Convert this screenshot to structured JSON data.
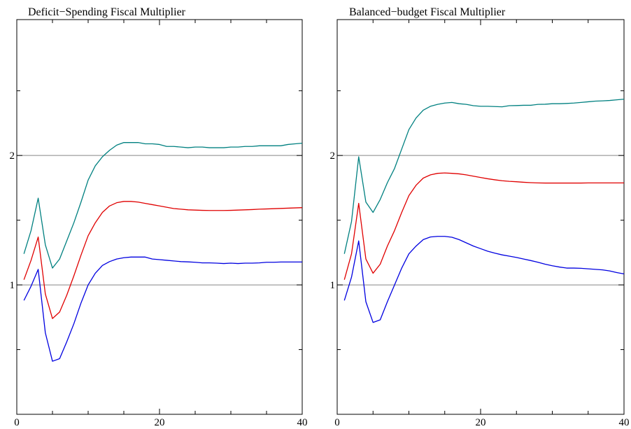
{
  "chart_data": [
    {
      "type": "line",
      "title": "Deficit−Spending Fiscal Multiplier",
      "xlim": [
        0,
        40
      ],
      "ylim": [
        0,
        3.05
      ],
      "x_ticks": [
        0,
        20,
        40
      ],
      "x_tick_labels": [
        "0",
        "20",
        "40"
      ],
      "y_ticks": [
        1,
        2
      ],
      "y_tick_labels": [
        "1",
        "2"
      ],
      "y_minor_ticks": [
        0.5,
        1.5,
        2.5
      ],
      "reference_lines": [
        1,
        2
      ],
      "series": [
        {
          "color": "#008080",
          "x": [
            1,
            2,
            3,
            4,
            5,
            6,
            7,
            8,
            9,
            10,
            11,
            12,
            13,
            14,
            15,
            16,
            17,
            18,
            19,
            20,
            21,
            22,
            23,
            24,
            25,
            26,
            27,
            28,
            29,
            30,
            31,
            32,
            33,
            34,
            35,
            36,
            37,
            38,
            39,
            40
          ],
          "values": [
            1.24,
            1.42,
            1.67,
            1.31,
            1.13,
            1.2,
            1.34,
            1.48,
            1.64,
            1.81,
            1.92,
            1.99,
            2.04,
            2.08,
            2.1,
            2.1,
            2.1,
            2.09,
            2.09,
            2.085,
            2.07,
            2.07,
            2.065,
            2.06,
            2.065,
            2.065,
            2.06,
            2.06,
            2.06,
            2.065,
            2.065,
            2.07,
            2.07,
            2.075,
            2.075,
            2.075,
            2.075,
            2.085,
            2.09,
            2.095
          ]
        },
        {
          "color": "#e00000",
          "x": [
            1,
            2,
            3,
            4,
            5,
            6,
            7,
            8,
            9,
            10,
            11,
            12,
            13,
            14,
            15,
            16,
            17,
            18,
            19,
            20,
            21,
            22,
            23,
            24,
            25,
            26,
            27,
            28,
            29,
            30,
            31,
            32,
            33,
            34,
            35,
            36,
            37,
            38,
            39,
            40
          ],
          "values": [
            1.04,
            1.19,
            1.37,
            0.93,
            0.74,
            0.79,
            0.92,
            1.07,
            1.23,
            1.38,
            1.48,
            1.56,
            1.61,
            1.635,
            1.645,
            1.645,
            1.64,
            1.63,
            1.62,
            1.61,
            1.6,
            1.59,
            1.585,
            1.58,
            1.578,
            1.576,
            1.575,
            1.575,
            1.575,
            1.576,
            1.578,
            1.58,
            1.582,
            1.585,
            1.587,
            1.589,
            1.591,
            1.593,
            1.595,
            1.597
          ]
        },
        {
          "color": "#0000e0",
          "x": [
            1,
            2,
            3,
            4,
            5,
            6,
            7,
            8,
            9,
            10,
            11,
            12,
            13,
            14,
            15,
            16,
            17,
            18,
            19,
            20,
            21,
            22,
            23,
            24,
            25,
            26,
            27,
            28,
            29,
            30,
            31,
            32,
            33,
            34,
            35,
            36,
            37,
            38,
            39,
            40
          ],
          "values": [
            0.88,
            0.99,
            1.12,
            0.63,
            0.41,
            0.43,
            0.56,
            0.7,
            0.86,
            1.0,
            1.09,
            1.15,
            1.18,
            1.2,
            1.21,
            1.215,
            1.215,
            1.215,
            1.2,
            1.195,
            1.19,
            1.185,
            1.18,
            1.178,
            1.175,
            1.17,
            1.17,
            1.168,
            1.165,
            1.168,
            1.165,
            1.168,
            1.168,
            1.17,
            1.175,
            1.175,
            1.177,
            1.177,
            1.177,
            1.177
          ]
        }
      ]
    },
    {
      "type": "line",
      "title": "Balanced−budget Fiscal Multiplier",
      "xlim": [
        0,
        40
      ],
      "ylim": [
        0,
        3.05
      ],
      "x_ticks": [
        0,
        20,
        40
      ],
      "x_tick_labels": [
        "0",
        "20",
        "40"
      ],
      "y_ticks": [
        1,
        2
      ],
      "y_tick_labels": [
        "1",
        "2"
      ],
      "y_minor_ticks": [
        0.5,
        1.5,
        2.5
      ],
      "reference_lines": [
        1,
        2
      ],
      "series": [
        {
          "color": "#008080",
          "x": [
            1,
            2,
            3,
            4,
            5,
            6,
            7,
            8,
            9,
            10,
            11,
            12,
            13,
            14,
            15,
            16,
            17,
            18,
            19,
            20,
            21,
            22,
            23,
            24,
            25,
            26,
            27,
            28,
            29,
            30,
            31,
            32,
            33,
            34,
            35,
            36,
            37,
            38,
            39,
            40
          ],
          "values": [
            1.24,
            1.49,
            1.99,
            1.64,
            1.56,
            1.66,
            1.79,
            1.9,
            2.05,
            2.2,
            2.29,
            2.35,
            2.38,
            2.395,
            2.405,
            2.41,
            2.4,
            2.395,
            2.385,
            2.38,
            2.38,
            2.378,
            2.376,
            2.385,
            2.386,
            2.388,
            2.388,
            2.395,
            2.396,
            2.4,
            2.4,
            2.402,
            2.405,
            2.41,
            2.415,
            2.42,
            2.422,
            2.425,
            2.43,
            2.435
          ]
        },
        {
          "color": "#e00000",
          "x": [
            1,
            2,
            3,
            4,
            5,
            6,
            7,
            8,
            9,
            10,
            11,
            12,
            13,
            14,
            15,
            16,
            17,
            18,
            19,
            20,
            21,
            22,
            23,
            24,
            25,
            26,
            27,
            28,
            29,
            30,
            31,
            32,
            33,
            34,
            35,
            36,
            37,
            38,
            39,
            40
          ],
          "values": [
            1.04,
            1.24,
            1.63,
            1.2,
            1.09,
            1.16,
            1.3,
            1.42,
            1.56,
            1.69,
            1.77,
            1.825,
            1.85,
            1.862,
            1.865,
            1.862,
            1.858,
            1.85,
            1.84,
            1.83,
            1.82,
            1.812,
            1.805,
            1.8,
            1.797,
            1.793,
            1.79,
            1.788,
            1.787,
            1.787,
            1.787,
            1.787,
            1.787,
            1.787,
            1.788,
            1.788,
            1.788,
            1.788,
            1.788,
            1.788
          ]
        },
        {
          "color": "#0000e0",
          "x": [
            1,
            2,
            3,
            4,
            5,
            6,
            7,
            8,
            9,
            10,
            11,
            12,
            13,
            14,
            15,
            16,
            17,
            18,
            19,
            20,
            21,
            22,
            23,
            24,
            25,
            26,
            27,
            28,
            29,
            30,
            31,
            32,
            33,
            34,
            35,
            36,
            37,
            38,
            39,
            40
          ],
          "values": [
            0.88,
            1.06,
            1.34,
            0.87,
            0.71,
            0.73,
            0.87,
            1.0,
            1.13,
            1.24,
            1.3,
            1.35,
            1.37,
            1.375,
            1.375,
            1.368,
            1.35,
            1.325,
            1.3,
            1.28,
            1.26,
            1.245,
            1.232,
            1.222,
            1.212,
            1.2,
            1.188,
            1.175,
            1.16,
            1.148,
            1.138,
            1.13,
            1.13,
            1.128,
            1.124,
            1.12,
            1.116,
            1.108,
            1.095,
            1.085
          ]
        }
      ]
    }
  ]
}
